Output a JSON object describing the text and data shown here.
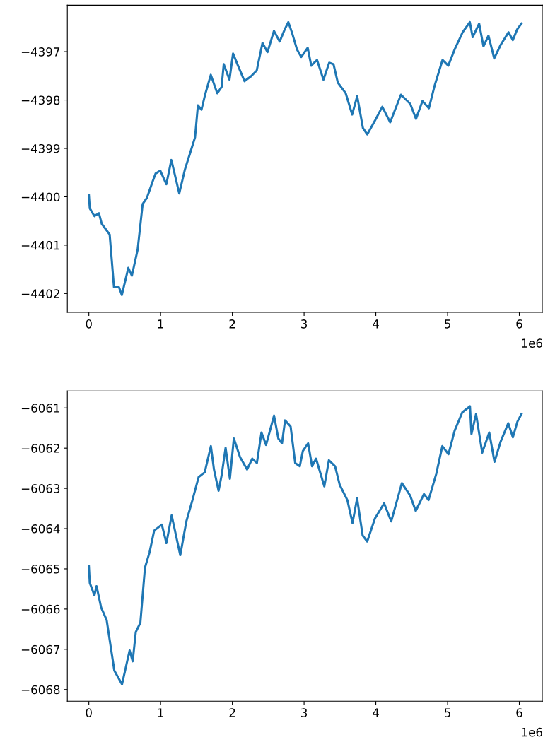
{
  "chart_data": [
    {
      "type": "line",
      "annotations": [
        "1e6"
      ],
      "x": [
        0,
        0.013,
        0.077,
        0.14,
        0.18,
        0.29,
        0.35,
        0.42,
        0.46,
        0.55,
        0.6,
        0.68,
        0.75,
        0.81,
        0.89,
        0.93,
        0.995,
        1.08,
        1.15,
        1.26,
        1.34,
        1.4,
        1.48,
        1.52,
        1.57,
        1.62,
        1.7,
        1.79,
        1.85,
        1.88,
        1.96,
        2.01,
        2.09,
        2.17,
        2.26,
        2.34,
        2.42,
        2.49,
        2.58,
        2.66,
        2.73,
        2.78,
        2.83,
        2.9,
        2.96,
        3.05,
        3.1,
        3.18,
        3.27,
        3.35,
        3.41,
        3.47,
        3.58,
        3.67,
        3.74,
        3.82,
        3.88,
        3.99,
        4.09,
        4.2,
        4.35,
        4.48,
        4.56,
        4.65,
        4.74,
        4.82,
        4.93,
        5.01,
        5.1,
        5.21,
        5.31,
        5.35,
        5.44,
        5.5,
        5.57,
        5.65,
        5.74,
        5.85,
        5.91,
        5.97,
        6.03
      ],
      "series": [
        {
          "color": "#1f77b4",
          "values": [
            -4399.96,
            -4400.24,
            -4400.4,
            -4400.34,
            -4400.56,
            -4400.78,
            -4401.87,
            -4401.87,
            -4402.03,
            -4401.47,
            -4401.63,
            -4401.09,
            -4400.15,
            -4400.02,
            -4399.68,
            -4399.52,
            -4399.46,
            -4399.74,
            -4399.24,
            -4399.93,
            -4399.43,
            -4399.15,
            -4398.77,
            -4398.11,
            -4398.2,
            -4397.89,
            -4397.48,
            -4397.86,
            -4397.73,
            -4397.26,
            -4397.58,
            -4397.04,
            -4397.33,
            -4397.61,
            -4397.51,
            -4397.39,
            -4396.82,
            -4397.01,
            -4396.57,
            -4396.79,
            -4396.54,
            -4396.39,
            -4396.6,
            -4396.95,
            -4397.11,
            -4396.92,
            -4397.29,
            -4397.17,
            -4397.58,
            -4397.23,
            -4397.26,
            -4397.64,
            -4397.86,
            -4398.3,
            -4397.92,
            -4398.58,
            -4398.71,
            -4398.42,
            -4398.14,
            -4398.46,
            -4397.89,
            -4398.08,
            -4398.39,
            -4398.02,
            -4398.17,
            -4397.7,
            -4397.17,
            -4397.29,
            -4396.95,
            -4396.6,
            -4396.39,
            -4396.7,
            -4396.42,
            -4396.89,
            -4396.67,
            -4397.14,
            -4396.86,
            -4396.6,
            -4396.76,
            -4396.54,
            -4396.42
          ]
        }
      ],
      "xlim": [
        -0.3,
        6.33
      ],
      "ylim": [
        -4402.39,
        -4396.04
      ],
      "xticks": [
        0,
        1,
        2,
        3,
        4,
        5,
        6
      ],
      "yticks": [
        {
          "value": -4402,
          "label": "−4402"
        },
        {
          "value": -4401,
          "label": "−4401"
        },
        {
          "value": -4400,
          "label": "−4400"
        },
        {
          "value": -4399,
          "label": "−4399"
        },
        {
          "value": -4398,
          "label": "−4398"
        },
        {
          "value": -4397,
          "label": "−4397"
        }
      ],
      "marker": "none",
      "line_style": "solid"
    },
    {
      "type": "line",
      "annotations": [
        "1e6"
      ],
      "x": [
        0,
        0.013,
        0.077,
        0.107,
        0.171,
        0.248,
        0.355,
        0.462,
        0.568,
        0.611,
        0.654,
        0.718,
        0.782,
        0.846,
        0.91,
        1.017,
        1.081,
        1.154,
        1.274,
        1.359,
        1.444,
        1.53,
        1.615,
        1.701,
        1.744,
        1.808,
        1.85,
        1.906,
        1.966,
        2.021,
        2.107,
        2.205,
        2.278,
        2.342,
        2.406,
        2.47,
        2.581,
        2.641,
        2.692,
        2.735,
        2.812,
        2.876,
        2.94,
        2.983,
        3.056,
        3.111,
        3.167,
        3.282,
        3.346,
        3.432,
        3.496,
        3.603,
        3.675,
        3.739,
        3.816,
        3.88,
        3.987,
        4.115,
        4.214,
        4.363,
        4.479,
        4.556,
        4.671,
        4.735,
        4.842,
        4.927,
        5.013,
        5.098,
        5.205,
        5.312,
        5.333,
        5.397,
        5.483,
        5.581,
        5.654,
        5.739,
        5.846,
        5.91,
        5.974,
        6.03
      ],
      "series": [
        {
          "color": "#1f77b4",
          "values": [
            -6064.93,
            -6065.35,
            -6065.66,
            -6065.43,
            -6065.96,
            -6066.27,
            -6067.53,
            -6067.87,
            -6067.03,
            -6067.3,
            -6066.57,
            -6066.34,
            -6064.97,
            -6064.59,
            -6064.05,
            -6063.9,
            -6064.36,
            -6063.67,
            -6064.66,
            -6063.82,
            -6063.29,
            -6062.72,
            -6062.6,
            -6061.95,
            -6062.53,
            -6063.06,
            -6062.68,
            -6061.99,
            -6062.76,
            -6061.76,
            -6062.22,
            -6062.53,
            -6062.26,
            -6062.37,
            -6061.61,
            -6061.92,
            -6061.19,
            -6061.76,
            -6061.88,
            -6061.31,
            -6061.46,
            -6062.37,
            -6062.45,
            -6062.07,
            -6061.88,
            -6062.45,
            -6062.26,
            -6062.95,
            -6062.3,
            -6062.45,
            -6062.91,
            -6063.29,
            -6063.86,
            -6063.25,
            -6064.17,
            -6064.32,
            -6063.75,
            -6063.37,
            -6063.82,
            -6062.87,
            -6063.18,
            -6063.56,
            -6063.14,
            -6063.29,
            -6062.64,
            -6061.95,
            -6062.15,
            -6061.57,
            -6061.11,
            -6060.96,
            -6061.65,
            -6061.15,
            -6062.11,
            -6061.61,
            -6062.34,
            -6061.84,
            -6061.38,
            -6061.73,
            -6061.34,
            -6061.15
          ]
        }
      ],
      "xlim": [
        -0.3,
        6.33
      ],
      "ylim": [
        -6068.29,
        -6060.58
      ],
      "xticks": [
        0,
        1,
        2,
        3,
        4,
        5,
        6
      ],
      "yticks": [
        {
          "value": -6068,
          "label": "−6068"
        },
        {
          "value": -6067,
          "label": "−6067"
        },
        {
          "value": -6066,
          "label": "−6066"
        },
        {
          "value": -6065,
          "label": "−6065"
        },
        {
          "value": -6064,
          "label": "−6064"
        },
        {
          "value": -6063,
          "label": "−6063"
        },
        {
          "value": -6062,
          "label": "−6062"
        },
        {
          "value": -6061,
          "label": "−6061"
        }
      ],
      "marker": "none",
      "line_style": "solid"
    }
  ]
}
